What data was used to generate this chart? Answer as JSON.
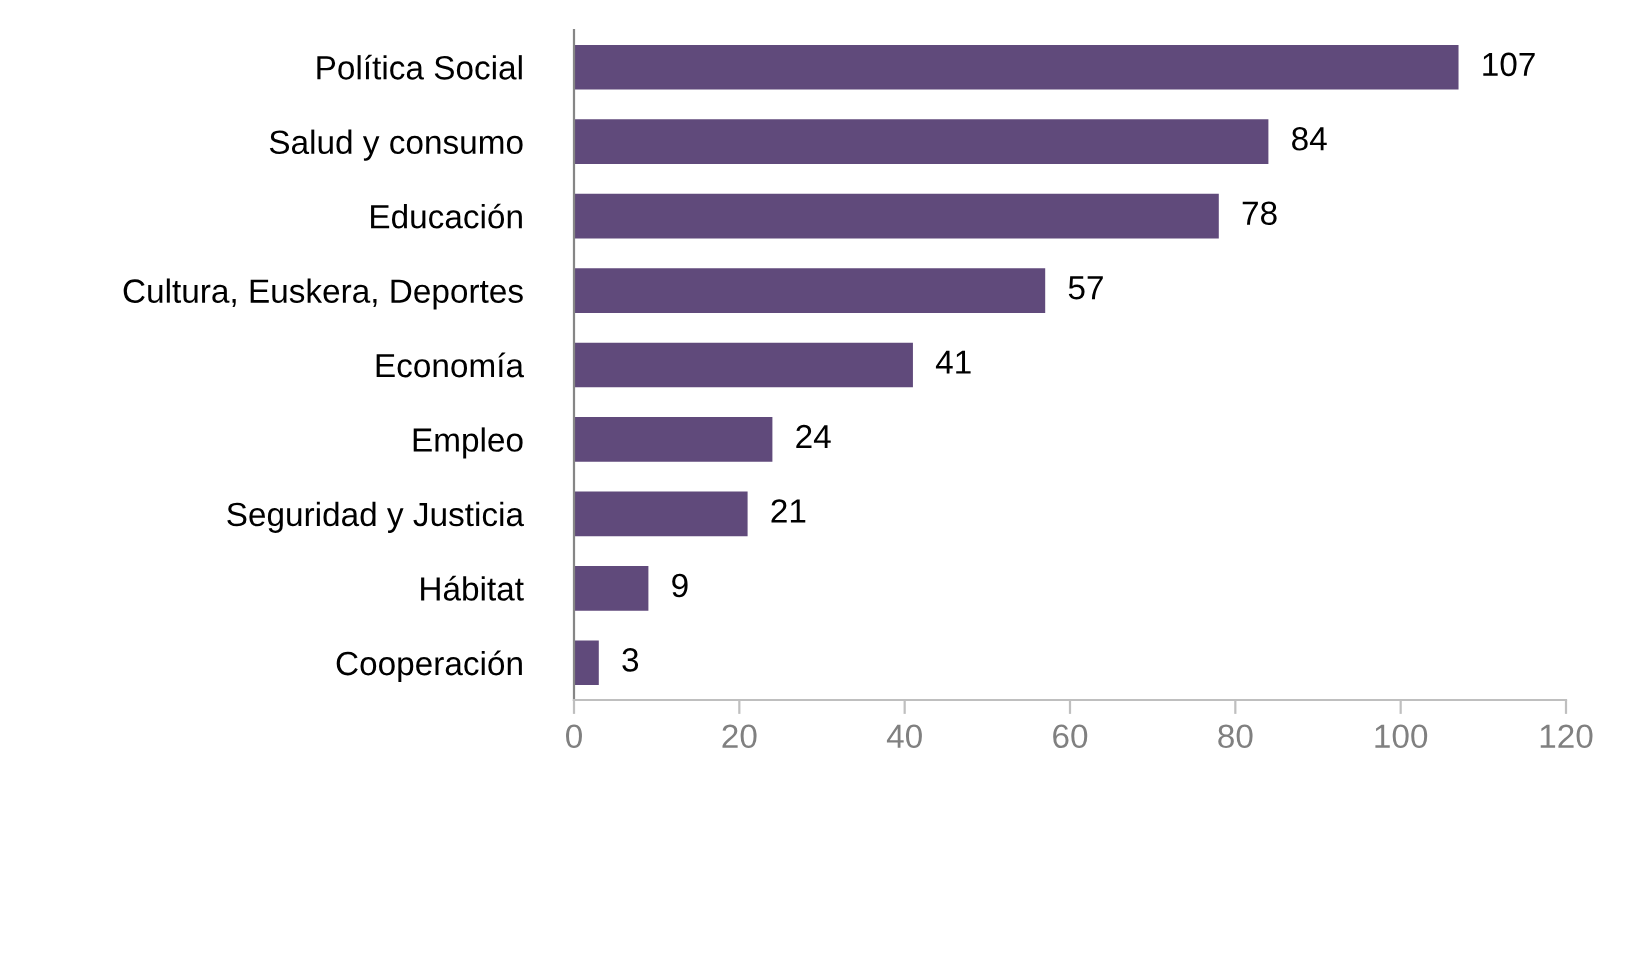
{
  "chart_data": {
    "type": "bar",
    "orientation": "horizontal",
    "categories": [
      "Política Social",
      "Salud y consumo",
      "Educación",
      "Cultura, Euskera, Deportes",
      "Economía",
      "Empleo",
      "Seguridad y Justicia",
      "Hábitat",
      "Cooperación"
    ],
    "values": [
      107,
      84,
      78,
      57,
      41,
      24,
      21,
      9,
      3
    ],
    "color": "#604a7b",
    "xlim": [
      0,
      120
    ],
    "xticks": [
      0,
      20,
      40,
      60,
      80,
      100,
      120
    ],
    "data_labels": true,
    "grid": false,
    "legend": false
  }
}
